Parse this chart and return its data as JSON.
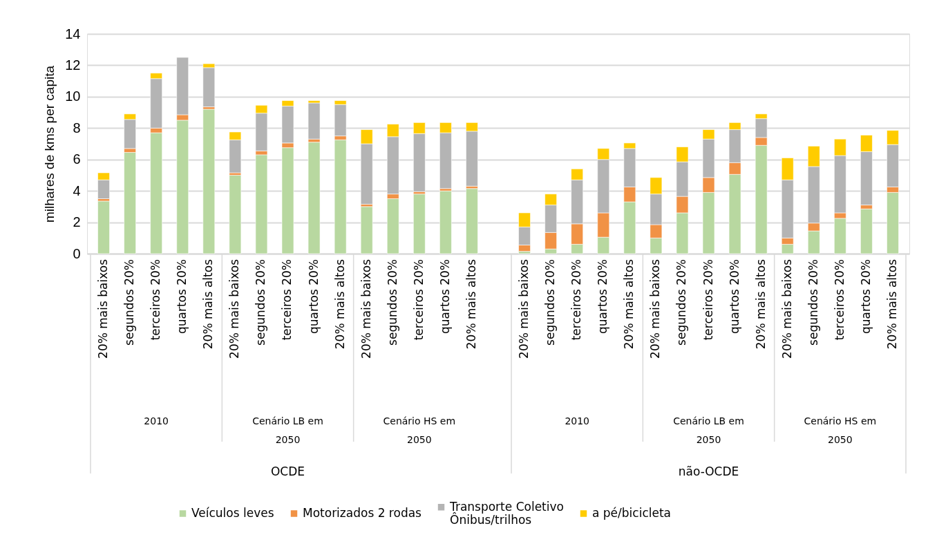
{
  "chart_data": {
    "type": "bar",
    "stacked": true,
    "ylabel": "milhares de kms per capita",
    "categories": [
      "20% mais baixos",
      "segundos 20%",
      "terceiros 20%",
      "quartos 20%",
      "20% mais altos",
      "20% mais baixos",
      "segundos 20%",
      "terceiros 20%",
      "quartos 20%",
      "20% mais altos",
      "20% mais baixos",
      "segundos 20%",
      "terceiros 20%",
      "quartos 20%",
      "20% mais altos",
      null,
      "20% mais baixos",
      "segundos 20%",
      "terceiros 20%",
      "quartos 20%",
      "20% mais altos",
      "20% mais baixos",
      "segundos 20%",
      "terceiros 20%",
      "quartos 20%",
      "20% mais altos",
      "20% mais baixos",
      "segundos 20%",
      "terceiros 20%",
      "quartos 20%",
      "20% mais altos"
    ],
    "series": [
      {
        "name": "Veículos leves",
        "color": "#b8d8a0",
        "values": [
          3.35,
          6.45,
          7.7,
          8.5,
          9.2,
          5.0,
          6.3,
          6.75,
          7.1,
          7.25,
          3.0,
          3.5,
          3.8,
          4.0,
          4.15,
          null,
          0.15,
          0.3,
          0.6,
          1.05,
          3.3,
          1.0,
          2.6,
          3.9,
          5.05,
          6.9,
          0.6,
          1.45,
          2.25,
          2.85,
          3.9
        ]
      },
      {
        "name": "Motorizados 2 rodas",
        "color": "#f19245",
        "values": [
          0.15,
          0.25,
          0.3,
          0.35,
          0.15,
          0.15,
          0.25,
          0.3,
          0.2,
          0.25,
          0.15,
          0.3,
          0.15,
          0.15,
          0.15,
          null,
          0.4,
          1.05,
          1.3,
          1.55,
          0.95,
          0.85,
          1.05,
          0.95,
          0.75,
          0.5,
          0.4,
          0.5,
          0.35,
          0.25,
          0.35
        ]
      },
      {
        "name": "Transporte Coletivo Ônibus/trilhos",
        "color": "#b4b4b4",
        "values": [
          1.2,
          1.85,
          3.15,
          3.65,
          2.5,
          2.1,
          2.4,
          2.35,
          2.3,
          2.0,
          3.85,
          3.65,
          3.7,
          3.55,
          3.5,
          null,
          1.15,
          1.75,
          2.8,
          3.4,
          2.45,
          1.95,
          2.2,
          2.45,
          2.1,
          1.2,
          3.7,
          3.6,
          3.65,
          3.4,
          2.7
        ]
      },
      {
        "name": "a pé/bicicleta",
        "color": "#ffcc00",
        "values": [
          0.45,
          0.35,
          0.35,
          null,
          0.25,
          0.5,
          0.5,
          0.35,
          0.15,
          0.25,
          0.9,
          0.8,
          0.7,
          0.65,
          0.55,
          null,
          0.9,
          0.7,
          0.7,
          0.7,
          0.35,
          1.05,
          0.95,
          0.6,
          0.45,
          0.3,
          1.4,
          1.3,
          1.05,
          1.05,
          0.9
        ]
      }
    ],
    "annotations": [
      "2010",
      "Cenário LB em 2050",
      "Cenário HS em 2050",
      "2010",
      "Cenário LB em 2050",
      "Cenário HS em 2050",
      "OCDE",
      "não-OCDE"
    ],
    "ylim": [
      0,
      14
    ],
    "yticks": [
      0,
      2,
      4,
      6,
      8,
      10,
      12,
      14
    ],
    "grid": "y",
    "legend": "bottom"
  }
}
